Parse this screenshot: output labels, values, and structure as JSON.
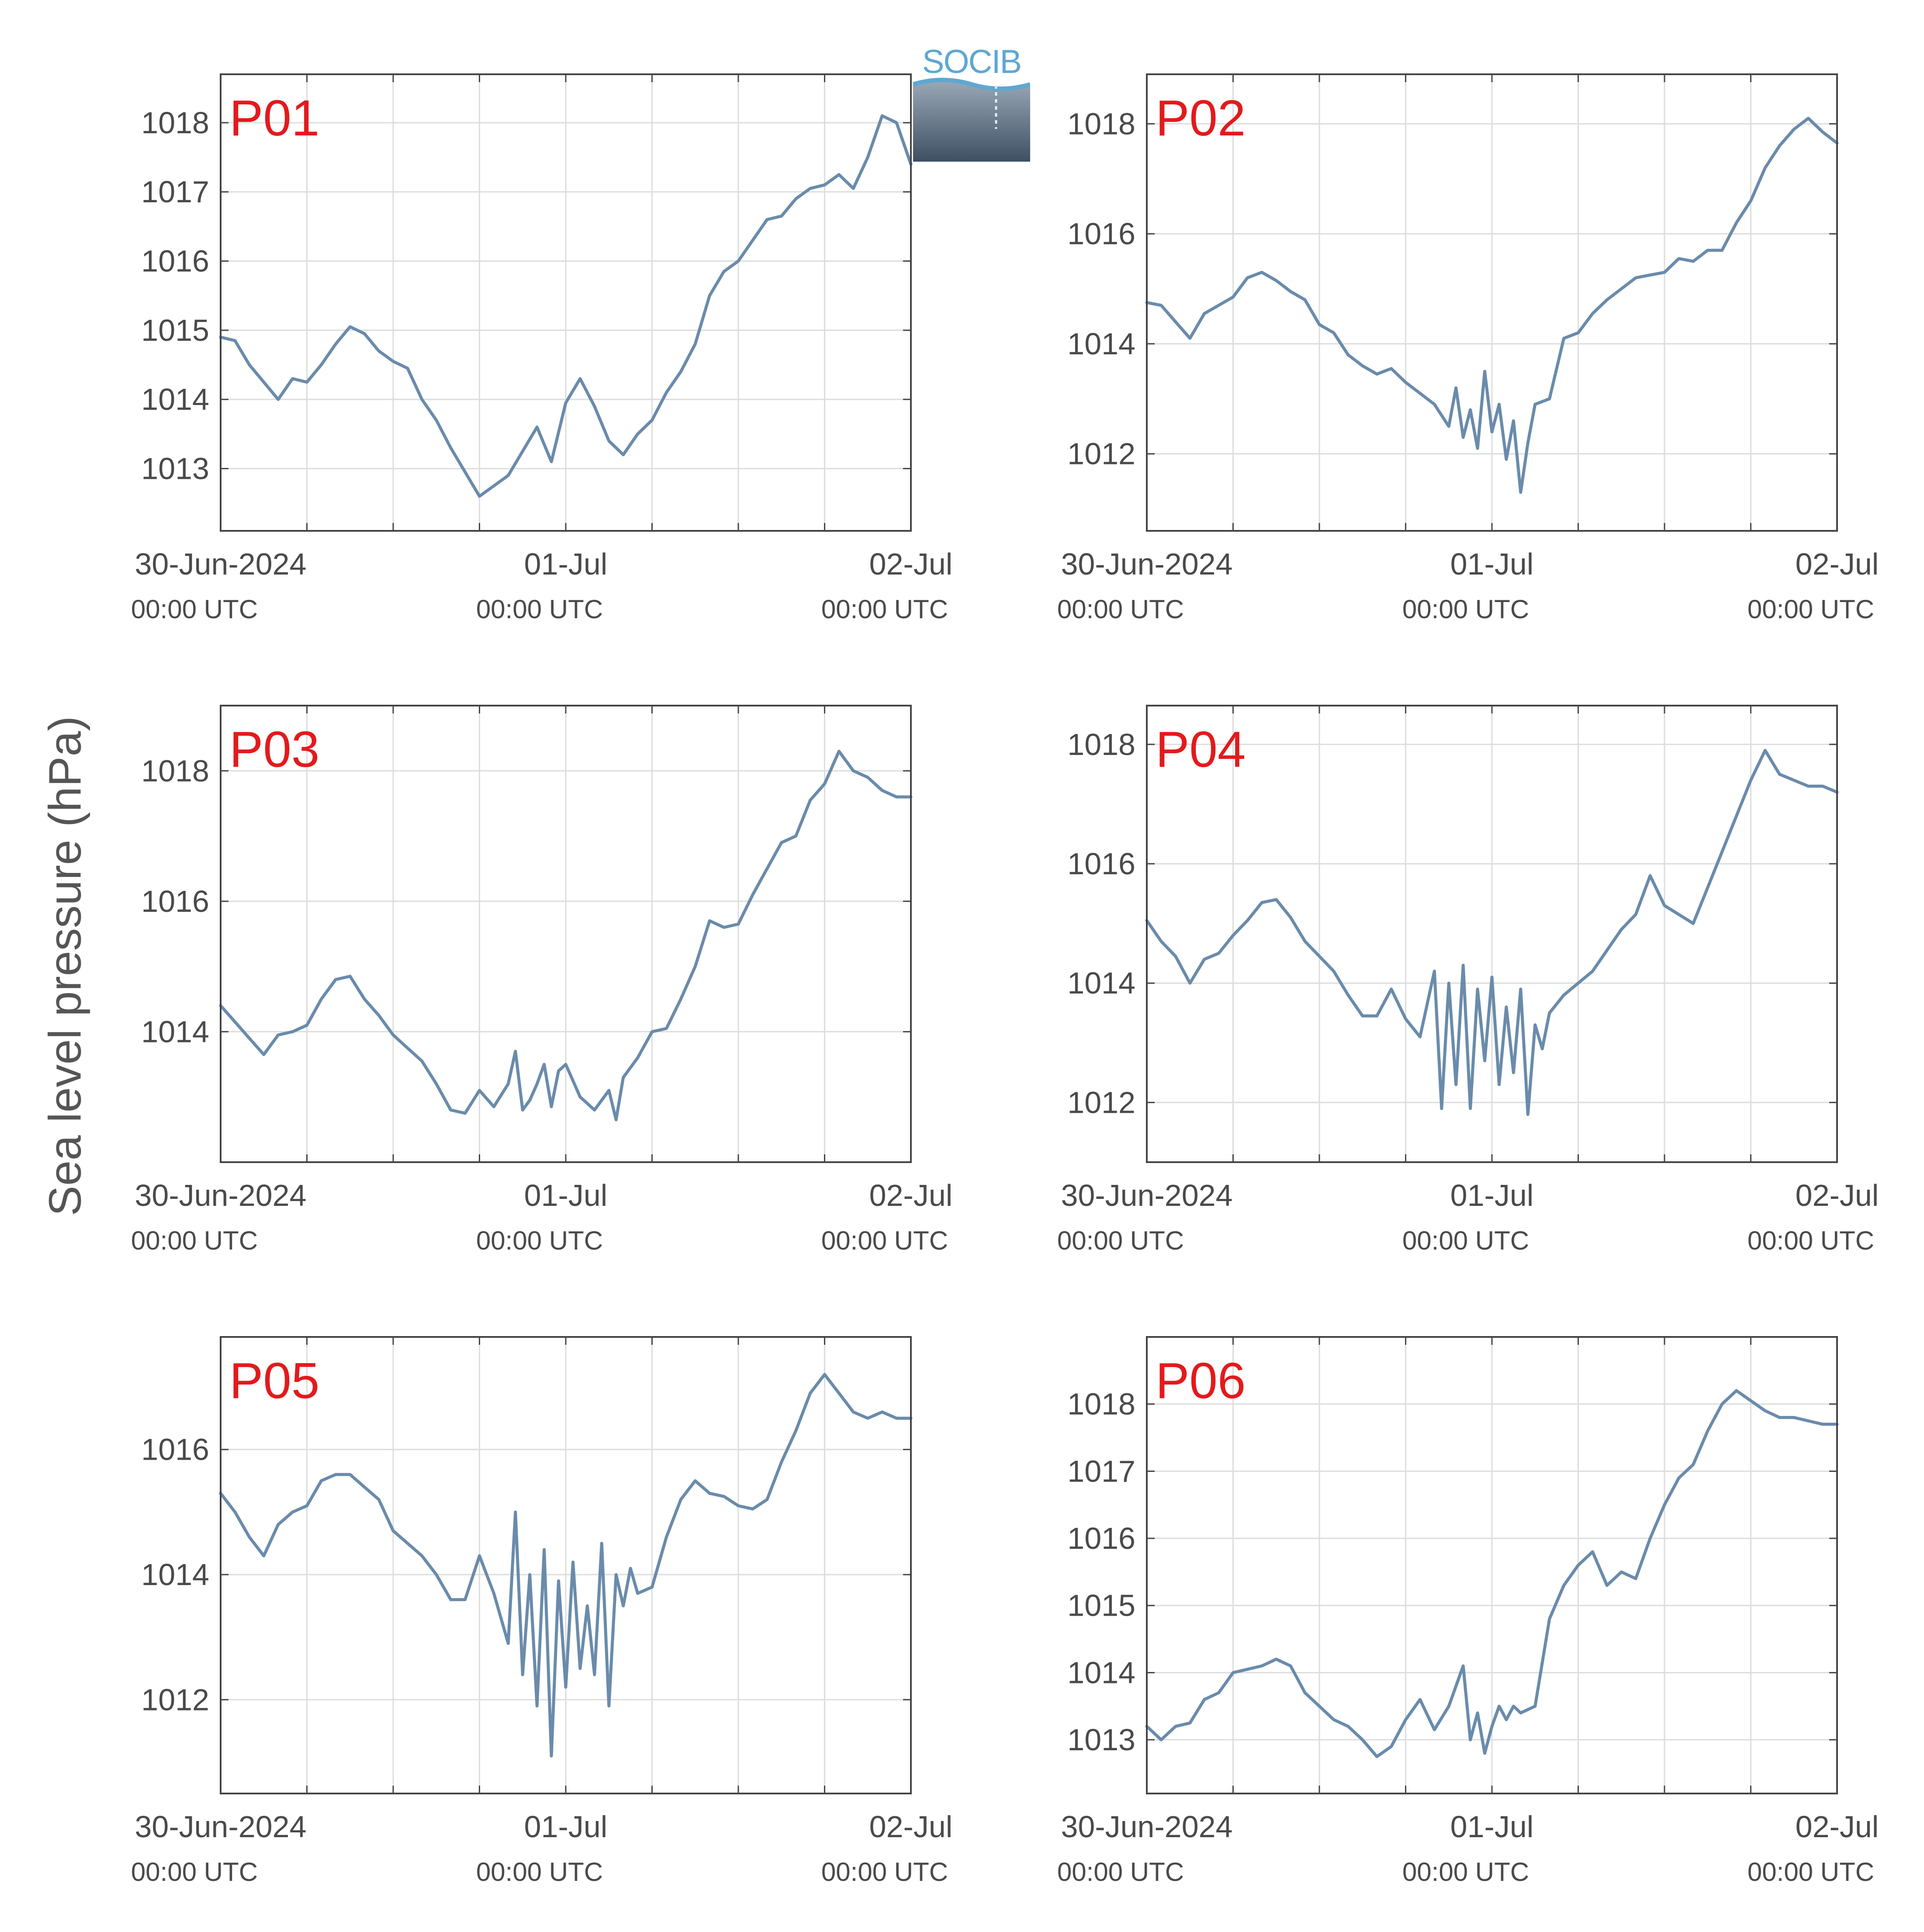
{
  "figure": {
    "ylabel": "Sea level pressure (hPa)",
    "logo_text": "SOCIB",
    "colors": {
      "line": "#6a8bab",
      "panel_label": "#e31a1c",
      "grid": "#dddddd",
      "axis": "#444444",
      "text": "#4a4a4a"
    }
  },
  "chart_data": [
    {
      "type": "line",
      "panel_label": "P01",
      "x_range": [
        "2024-06-30T00:00",
        "2024-07-02T00:00"
      ],
      "ylim": [
        1012.1,
        1018.7
      ],
      "yticks": [
        1013,
        1014,
        1015,
        1016,
        1017,
        1018
      ],
      "xticks": [
        {
          "date": "30-Jun-2024",
          "time": "00:00 UTC"
        },
        {
          "date": "01-Jul",
          "time": "00:00 UTC"
        },
        {
          "date": "02-Jul",
          "time": "00:00 UTC"
        }
      ],
      "grid": true,
      "series": [
        {
          "hours": [
            0,
            1,
            2,
            3,
            4,
            5,
            6,
            7,
            8,
            9,
            10,
            11,
            12,
            13,
            14,
            15,
            16,
            18,
            20,
            22,
            23,
            24,
            25,
            26,
            27,
            28,
            29,
            30,
            31,
            32,
            33,
            34,
            35,
            36,
            37,
            38,
            39,
            40,
            41,
            42,
            43,
            44,
            45,
            46,
            47,
            48
          ],
          "values": [
            1014.9,
            1014.85,
            1014.5,
            1014.25,
            1014.0,
            1014.3,
            1014.25,
            1014.5,
            1014.8,
            1015.05,
            1014.95,
            1014.7,
            1014.55,
            1014.45,
            1014.0,
            1013.7,
            1013.3,
            1012.6,
            1012.9,
            1013.6,
            1013.1,
            1013.95,
            1014.3,
            1013.9,
            1013.4,
            1013.2,
            1013.5,
            1013.7,
            1014.1,
            1014.4,
            1014.8,
            1015.5,
            1015.85,
            1016.0,
            1016.3,
            1016.6,
            1016.65,
            1016.9,
            1017.05,
            1017.1,
            1017.25,
            1017.05,
            1017.5,
            1018.1,
            1018.0,
            1017.4
          ]
        }
      ]
    },
    {
      "type": "line",
      "panel_label": "P02",
      "x_range": [
        "2024-06-30T00:00",
        "2024-07-02T00:00"
      ],
      "ylim": [
        1010.6,
        1018.9
      ],
      "yticks": [
        1012,
        1014,
        1016,
        1018
      ],
      "xticks": [
        {
          "date": "30-Jun-2024",
          "time": "00:00 UTC"
        },
        {
          "date": "01-Jul",
          "time": "00:00 UTC"
        },
        {
          "date": "02-Jul",
          "time": "00:00 UTC"
        }
      ],
      "grid": true,
      "series": [
        {
          "hours": [
            0,
            1,
            2,
            3,
            4,
            5,
            6,
            7,
            8,
            9,
            10,
            11,
            12,
            13,
            14,
            15,
            16,
            17,
            18,
            19,
            20,
            21,
            21.5,
            22,
            22.5,
            23,
            23.5,
            24,
            24.5,
            25,
            25.5,
            26,
            26.5,
            27,
            28,
            29,
            30,
            31,
            32,
            33,
            34,
            35,
            36,
            37,
            38,
            39,
            40,
            41,
            42,
            43,
            44,
            45,
            46,
            47,
            48
          ],
          "values": [
            1014.75,
            1014.7,
            1014.4,
            1014.1,
            1014.55,
            1014.7,
            1014.85,
            1015.2,
            1015.3,
            1015.15,
            1014.95,
            1014.8,
            1014.35,
            1014.2,
            1013.8,
            1013.6,
            1013.45,
            1013.55,
            1013.3,
            1013.1,
            1012.9,
            1012.5,
            1013.2,
            1012.3,
            1012.8,
            1012.1,
            1013.5,
            1012.4,
            1012.9,
            1011.9,
            1012.6,
            1011.3,
            1012.2,
            1012.9,
            1013.0,
            1014.1,
            1014.2,
            1014.55,
            1014.8,
            1015.0,
            1015.2,
            1015.25,
            1015.3,
            1015.55,
            1015.5,
            1015.7,
            1015.7,
            1016.2,
            1016.6,
            1017.2,
            1017.6,
            1017.9,
            1018.1,
            1017.85,
            1017.65
          ]
        }
      ]
    },
    {
      "type": "line",
      "panel_label": "P03",
      "x_range": [
        "2024-06-30T00:00",
        "2024-07-02T00:00"
      ],
      "ylim": [
        1012.0,
        1019.0
      ],
      "yticks": [
        1014,
        1016,
        1018
      ],
      "xticks": [
        {
          "date": "30-Jun-2024",
          "time": "00:00 UTC"
        },
        {
          "date": "01-Jul",
          "time": "00:00 UTC"
        },
        {
          "date": "02-Jul",
          "time": "00:00 UTC"
        }
      ],
      "grid": true,
      "series": [
        {
          "hours": [
            0,
            1,
            2,
            3,
            4,
            5,
            6,
            7,
            8,
            9,
            10,
            11,
            12,
            13,
            14,
            15,
            16,
            17,
            18,
            19,
            20,
            20.5,
            21,
            21.5,
            22,
            22.5,
            23,
            23.5,
            24,
            25,
            26,
            27,
            27.5,
            28,
            29,
            30,
            31,
            32,
            33,
            34,
            35,
            36,
            37,
            38,
            39,
            40,
            41,
            42,
            43,
            44,
            45,
            46,
            47,
            48
          ],
          "values": [
            1014.4,
            1014.15,
            1013.9,
            1013.65,
            1013.95,
            1014.0,
            1014.1,
            1014.5,
            1014.8,
            1014.85,
            1014.5,
            1014.25,
            1013.95,
            1013.75,
            1013.55,
            1013.2,
            1012.8,
            1012.75,
            1013.1,
            1012.85,
            1013.2,
            1013.7,
            1012.8,
            1012.95,
            1013.2,
            1013.5,
            1012.85,
            1013.4,
            1013.5,
            1013.0,
            1012.8,
            1013.1,
            1012.65,
            1013.3,
            1013.6,
            1014.0,
            1014.05,
            1014.5,
            1015.0,
            1015.7,
            1015.6,
            1015.65,
            1016.1,
            1016.5,
            1016.9,
            1017.0,
            1017.55,
            1017.8,
            1018.3,
            1018.0,
            1017.9,
            1017.7,
            1017.6,
            1017.6
          ]
        }
      ]
    },
    {
      "type": "line",
      "panel_label": "P04",
      "x_range": [
        "2024-06-30T00:00",
        "2024-07-02T00:00"
      ],
      "ylim": [
        1011.0,
        1018.65
      ],
      "yticks": [
        1012,
        1014,
        1016,
        1018
      ],
      "xticks": [
        {
          "date": "30-Jun-2024",
          "time": "00:00 UTC"
        },
        {
          "date": "01-Jul",
          "time": "00:00 UTC"
        },
        {
          "date": "02-Jul",
          "time": "00:00 UTC"
        }
      ],
      "grid": true,
      "series": [
        {
          "hours": [
            0,
            1,
            2,
            3,
            4,
            5,
            6,
            7,
            8,
            9,
            10,
            11,
            12,
            13,
            14,
            15,
            16,
            17,
            18,
            19,
            20,
            20.5,
            21,
            21.5,
            22,
            22.5,
            23,
            23.5,
            24,
            24.5,
            25,
            25.5,
            26,
            26.5,
            27,
            27.5,
            28,
            29,
            30,
            31,
            32,
            33,
            34,
            35,
            36,
            37,
            38,
            39,
            40,
            41,
            42,
            43,
            44,
            45,
            46,
            47,
            48
          ],
          "values": [
            1015.05,
            1014.7,
            1014.45,
            1014.0,
            1014.4,
            1014.5,
            1014.8,
            1015.05,
            1015.35,
            1015.4,
            1015.1,
            1014.7,
            1014.45,
            1014.2,
            1013.8,
            1013.45,
            1013.45,
            1013.9,
            1013.4,
            1013.1,
            1014.2,
            1011.9,
            1014.0,
            1012.3,
            1014.3,
            1011.9,
            1013.9,
            1012.7,
            1014.1,
            1012.3,
            1013.6,
            1012.5,
            1013.9,
            1011.8,
            1013.3,
            1012.9,
            1013.5,
            1013.8,
            1014.0,
            1014.2,
            1014.55,
            1014.9,
            1015.15,
            1015.8,
            1015.3,
            1015.15,
            1015.0,
            1015.6,
            1016.2,
            1016.8,
            1017.4,
            1017.9,
            1017.5,
            1017.4,
            1017.3,
            1017.3,
            1017.2
          ]
        }
      ]
    },
    {
      "type": "line",
      "panel_label": "P05",
      "x_range": [
        "2024-06-30T00:00",
        "2024-07-02T00:00"
      ],
      "ylim": [
        1010.5,
        1017.8
      ],
      "yticks": [
        1012,
        1014,
        1016
      ],
      "xticks": [
        {
          "date": "30-Jun-2024",
          "time": "00:00 UTC"
        },
        {
          "date": "01-Jul",
          "time": "00:00 UTC"
        },
        {
          "date": "02-Jul",
          "time": "00:00 UTC"
        }
      ],
      "grid": true,
      "series": [
        {
          "hours": [
            0,
            1,
            2,
            3,
            4,
            5,
            6,
            7,
            8,
            9,
            10,
            11,
            12,
            13,
            14,
            15,
            16,
            17,
            18,
            19,
            20,
            20.5,
            21,
            21.5,
            22,
            22.5,
            23,
            23.5,
            24,
            24.5,
            25,
            25.5,
            26,
            26.5,
            27,
            27.5,
            28,
            28.5,
            29,
            30,
            31,
            32,
            33,
            34,
            35,
            36,
            37,
            38,
            39,
            40,
            41,
            42,
            43,
            44,
            45,
            46,
            47,
            48
          ],
          "values": [
            1015.3,
            1015.0,
            1014.6,
            1014.3,
            1014.8,
            1015.0,
            1015.1,
            1015.5,
            1015.6,
            1015.6,
            1015.4,
            1015.2,
            1014.7,
            1014.5,
            1014.3,
            1014.0,
            1013.6,
            1013.6,
            1014.3,
            1013.7,
            1012.9,
            1015.0,
            1012.4,
            1014.0,
            1011.9,
            1014.4,
            1011.1,
            1013.9,
            1012.2,
            1014.2,
            1012.5,
            1013.5,
            1012.4,
            1014.5,
            1011.9,
            1014.0,
            1013.5,
            1014.1,
            1013.7,
            1013.8,
            1014.6,
            1015.2,
            1015.5,
            1015.3,
            1015.25,
            1015.1,
            1015.05,
            1015.2,
            1015.8,
            1016.3,
            1016.9,
            1017.2,
            1016.9,
            1016.6,
            1016.5,
            1016.6,
            1016.5,
            1016.5
          ]
        }
      ]
    },
    {
      "type": "line",
      "panel_label": "P06",
      "x_range": [
        "2024-06-30T00:00",
        "2024-07-02T00:00"
      ],
      "ylim": [
        1012.2,
        1019.0
      ],
      "yticks": [
        1013,
        1014,
        1015,
        1016,
        1017,
        1018
      ],
      "xticks": [
        {
          "date": "30-Jun-2024",
          "time": "00:00 UTC"
        },
        {
          "date": "01-Jul",
          "time": "00:00 UTC"
        },
        {
          "date": "02-Jul",
          "time": "00:00 UTC"
        }
      ],
      "grid": true,
      "series": [
        {
          "hours": [
            0,
            1,
            2,
            3,
            4,
            5,
            6,
            7,
            8,
            9,
            10,
            11,
            12,
            13,
            14,
            15,
            16,
            17,
            18,
            19,
            20,
            21,
            22,
            22.5,
            23,
            23.5,
            24,
            24.5,
            25,
            25.5,
            26,
            27,
            28,
            29,
            30,
            31,
            32,
            33,
            34,
            35,
            36,
            37,
            38,
            39,
            40,
            41,
            42,
            43,
            44,
            45,
            46,
            47,
            48
          ],
          "values": [
            1013.2,
            1013.0,
            1013.2,
            1013.25,
            1013.6,
            1013.7,
            1014.0,
            1014.05,
            1014.1,
            1014.2,
            1014.1,
            1013.7,
            1013.5,
            1013.3,
            1013.2,
            1013.0,
            1012.75,
            1012.9,
            1013.3,
            1013.6,
            1013.15,
            1013.5,
            1014.1,
            1013.0,
            1013.4,
            1012.8,
            1013.2,
            1013.5,
            1013.3,
            1013.5,
            1013.4,
            1013.5,
            1014.8,
            1015.3,
            1015.6,
            1015.8,
            1015.3,
            1015.5,
            1015.4,
            1016.0,
            1016.5,
            1016.9,
            1017.1,
            1017.6,
            1018.0,
            1018.2,
            1018.05,
            1017.9,
            1017.8,
            1017.8,
            1017.75,
            1017.7,
            1017.7
          ]
        }
      ]
    }
  ]
}
